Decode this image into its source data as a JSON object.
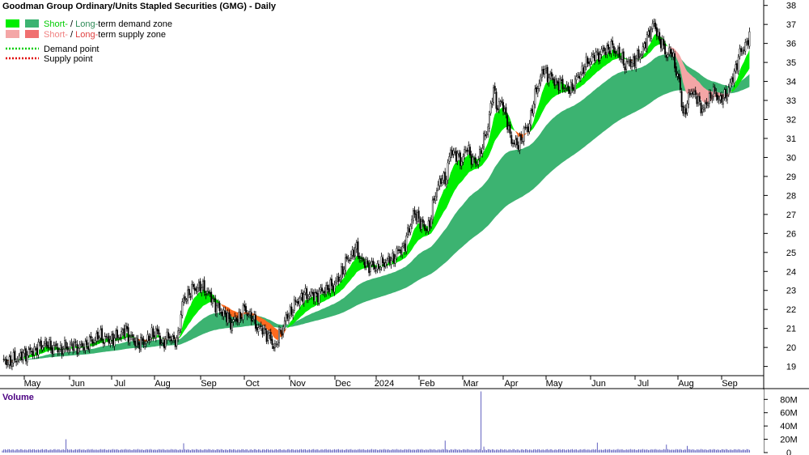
{
  "chart_data": {
    "type": "candlestick",
    "title": "Goodman Group Ordinary/Units Stapled Securities (GMG) - Daily",
    "legend": [
      {
        "label_short": "Short-",
        "sep": " / ",
        "label_long": "Long-",
        "label_rest": "term demand zone",
        "short_color": "#00ee00",
        "long_color": "#3cb371",
        "text_color": "#00cc00"
      },
      {
        "label_short": "Short-",
        "sep": " / ",
        "label_long": "Long-",
        "label_rest": "term supply zone",
        "short_color": "#f4a6a6",
        "long_color": "#f07070",
        "text_color": "#f08080"
      },
      {
        "label": "Demand point",
        "line_color": "#00cc00"
      },
      {
        "label": "Supply point",
        "line_color": "#e00000"
      }
    ],
    "y_ticks": [
      19,
      20,
      21,
      22,
      23,
      24,
      25,
      26,
      27,
      28,
      29,
      30,
      31,
      32,
      33,
      34,
      35,
      36,
      37,
      38
    ],
    "ylim": [
      18.6,
      38.2
    ],
    "x_ticks": [
      "May",
      "Jun",
      "Jul",
      "Aug",
      "Sep",
      "Oct",
      "Nov",
      "Dec",
      "2024",
      "Feb",
      "Mar",
      "Apr",
      "May",
      "Jun",
      "Jul",
      "Aug",
      "Sep"
    ],
    "price_path": [
      [
        0,
        19.2
      ],
      [
        7,
        19.3
      ],
      [
        15,
        19.6
      ],
      [
        22,
        19.8
      ],
      [
        30,
        20.2
      ],
      [
        36,
        20.0
      ],
      [
        42,
        19.9
      ],
      [
        50,
        20.1
      ],
      [
        57,
        20.0
      ],
      [
        64,
        20.3
      ],
      [
        70,
        20.6
      ],
      [
        76,
        20.4
      ],
      [
        82,
        20.5
      ],
      [
        89,
        20.9
      ],
      [
        95,
        20.3
      ],
      [
        101,
        20.2
      ],
      [
        106,
        20.5
      ],
      [
        111,
        20.9
      ],
      [
        115,
        20.2
      ],
      [
        121,
        20.6
      ],
      [
        126,
        20.2
      ],
      [
        130,
        22.3
      ],
      [
        135,
        22.9
      ],
      [
        141,
        23.2
      ],
      [
        146,
        23.1
      ],
      [
        151,
        22.6
      ],
      [
        156,
        22.0
      ],
      [
        160,
        21.8
      ],
      [
        165,
        21.3
      ],
      [
        170,
        21.5
      ],
      [
        175,
        22.0
      ],
      [
        180,
        21.6
      ],
      [
        185,
        21.0
      ],
      [
        189,
        20.9
      ],
      [
        193,
        20.5
      ],
      [
        197,
        20.0
      ],
      [
        200,
        20.6
      ],
      [
        205,
        21.5
      ],
      [
        210,
        22.1
      ],
      [
        215,
        22.6
      ],
      [
        220,
        22.8
      ],
      [
        226,
        22.7
      ],
      [
        232,
        23.0
      ],
      [
        238,
        23.2
      ],
      [
        243,
        23.6
      ],
      [
        247,
        24.3
      ],
      [
        251,
        24.8
      ],
      [
        256,
        25.2
      ],
      [
        260,
        24.5
      ],
      [
        266,
        24.3
      ],
      [
        271,
        24.2
      ],
      [
        276,
        24.5
      ],
      [
        281,
        24.6
      ],
      [
        287,
        25.1
      ],
      [
        291,
        25.4
      ],
      [
        294,
        26.3
      ],
      [
        297,
        27.0
      ],
      [
        301,
        26.8
      ],
      [
        305,
        26.2
      ],
      [
        309,
        26.5
      ],
      [
        313,
        28.2
      ],
      [
        317,
        28.8
      ],
      [
        321,
        29.0
      ],
      [
        324,
        30.4
      ],
      [
        327,
        30.2
      ],
      [
        331,
        29.8
      ],
      [
        336,
        30.5
      ],
      [
        339,
        30.0
      ],
      [
        342,
        29.6
      ],
      [
        347,
        30.6
      ],
      [
        351,
        31.7
      ],
      [
        355,
        33.6
      ],
      [
        358,
        32.6
      ],
      [
        361,
        32.9
      ],
      [
        364,
        32.2
      ],
      [
        367,
        31.0
      ],
      [
        370,
        30.8
      ],
      [
        373,
        30.6
      ],
      [
        377,
        31.4
      ],
      [
        380,
        31.5
      ],
      [
        383,
        32.6
      ],
      [
        387,
        33.8
      ],
      [
        391,
        34.6
      ],
      [
        396,
        34.2
      ],
      [
        401,
        33.9
      ],
      [
        405,
        33.8
      ],
      [
        410,
        33.5
      ],
      [
        415,
        34.1
      ],
      [
        420,
        34.7
      ],
      [
        425,
        35.2
      ],
      [
        430,
        35.4
      ],
      [
        435,
        35.6
      ],
      [
        440,
        35.8
      ],
      [
        445,
        35.5
      ],
      [
        450,
        34.9
      ],
      [
        455,
        35.0
      ],
      [
        460,
        35.3
      ],
      [
        465,
        36.0
      ],
      [
        468,
        36.7
      ],
      [
        471,
        37.0
      ],
      [
        474,
        36.4
      ],
      [
        477,
        35.9
      ],
      [
        480,
        35.4
      ],
      [
        483,
        35.6
      ],
      [
        486,
        34.9
      ],
      [
        489,
        34.0
      ],
      [
        492,
        32.3
      ],
      [
        495,
        32.8
      ],
      [
        498,
        33.6
      ],
      [
        501,
        33.2
      ],
      [
        504,
        32.8
      ],
      [
        507,
        32.5
      ],
      [
        510,
        33.0
      ],
      [
        513,
        33.4
      ],
      [
        516,
        33.3
      ],
      [
        519,
        33.0
      ],
      [
        522,
        33.2
      ],
      [
        525,
        33.6
      ],
      [
        528,
        34.2
      ],
      [
        531,
        35.0
      ],
      [
        534,
        35.6
      ],
      [
        537,
        35.9
      ],
      [
        540,
        36.3
      ]
    ],
    "volume": {
      "label": "Volume",
      "y_ticks": [
        "0",
        "20M",
        "40M",
        "60M",
        "80M"
      ],
      "ylim": [
        0,
        95
      ],
      "baseline": 3,
      "spikes": [
        [
          46,
          20
        ],
        [
          131,
          14
        ],
        [
          320,
          18
        ],
        [
          346,
          92
        ],
        [
          348,
          9
        ],
        [
          430,
          15
        ],
        [
          480,
          12
        ],
        [
          495,
          10
        ]
      ]
    }
  }
}
